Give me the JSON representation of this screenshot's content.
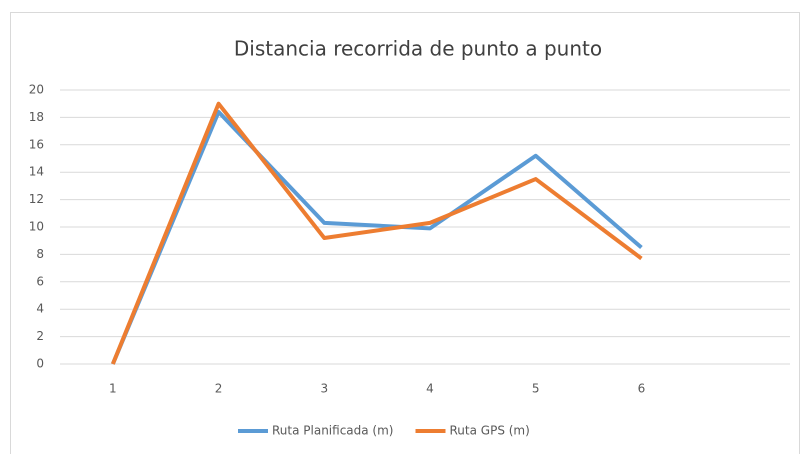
{
  "chart_data": {
    "type": "line",
    "title": "Distancia recorrida de punto a punto",
    "categories": [
      "1",
      "2",
      "3",
      "4",
      "5",
      "6",
      null
    ],
    "series": [
      {
        "name": "Ruta Planificada (m)",
        "color": "#5b9bd5",
        "values": [
          0,
          18.4,
          10.3,
          9.9,
          15.2,
          8.5,
          null
        ]
      },
      {
        "name": "Ruta GPS (m)",
        "color": "#ed7d31",
        "values": [
          0,
          19,
          9.2,
          10.3,
          13.5,
          7.7,
          null
        ]
      }
    ],
    "ylim": [
      0,
      20
    ],
    "yticks": [
      0,
      2,
      4,
      6,
      8,
      10,
      12,
      14,
      16,
      18,
      20
    ],
    "grid": true,
    "legend": "bottom"
  }
}
